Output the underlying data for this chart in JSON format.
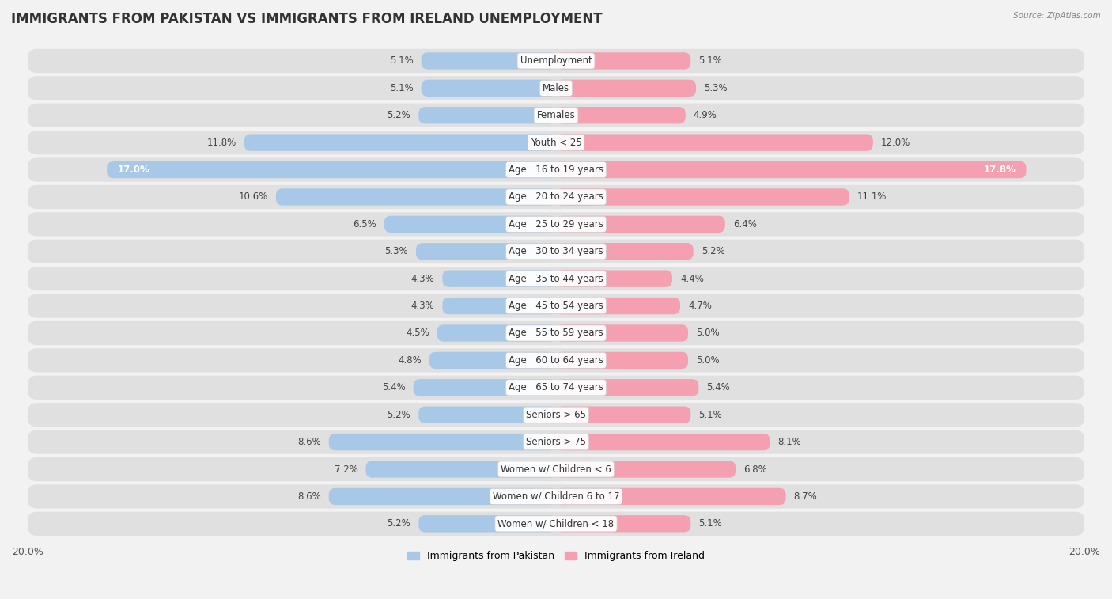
{
  "title": "IMMIGRANTS FROM PAKISTAN VS IMMIGRANTS FROM IRELAND UNEMPLOYMENT",
  "source": "Source: ZipAtlas.com",
  "categories": [
    "Unemployment",
    "Males",
    "Females",
    "Youth < 25",
    "Age | 16 to 19 years",
    "Age | 20 to 24 years",
    "Age | 25 to 29 years",
    "Age | 30 to 34 years",
    "Age | 35 to 44 years",
    "Age | 45 to 54 years",
    "Age | 55 to 59 years",
    "Age | 60 to 64 years",
    "Age | 65 to 74 years",
    "Seniors > 65",
    "Seniors > 75",
    "Women w/ Children < 6",
    "Women w/ Children 6 to 17",
    "Women w/ Children < 18"
  ],
  "pakistan_values": [
    5.1,
    5.1,
    5.2,
    11.8,
    17.0,
    10.6,
    6.5,
    5.3,
    4.3,
    4.3,
    4.5,
    4.8,
    5.4,
    5.2,
    8.6,
    7.2,
    8.6,
    5.2
  ],
  "ireland_values": [
    5.1,
    5.3,
    4.9,
    12.0,
    17.8,
    11.1,
    6.4,
    5.2,
    4.4,
    4.7,
    5.0,
    5.0,
    5.4,
    5.1,
    8.1,
    6.8,
    8.7,
    5.1
  ],
  "pakistan_color": "#a8c8e8",
  "ireland_color": "#f4a0b0",
  "pakistan_label": "Immigrants from Pakistan",
  "ireland_label": "Immigrants from Ireland",
  "max_val": 20.0,
  "background_color": "#f2f2f2",
  "row_bg_color": "#e0e0e0",
  "title_fontsize": 12,
  "label_fontsize": 8.5,
  "value_fontsize": 8.5
}
